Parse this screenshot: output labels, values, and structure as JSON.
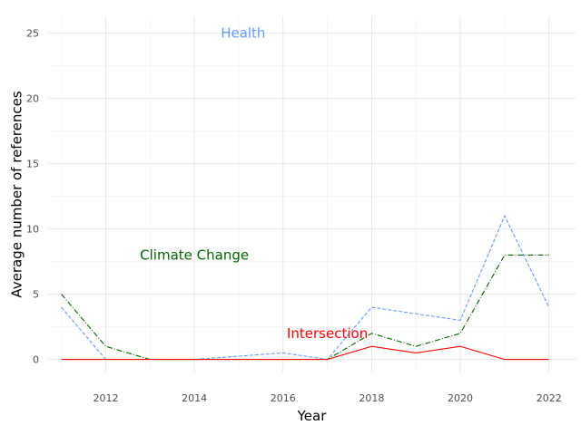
{
  "chart_data": {
    "type": "line",
    "xlabel": "Year",
    "ylabel": "Average number of references",
    "xlim": [
      2010.7,
      2022.6
    ],
    "ylim": [
      -1.0,
      26.3
    ],
    "x_ticks": [
      2012,
      2014,
      2016,
      2018,
      2020,
      2022
    ],
    "y_ticks": [
      0,
      5,
      10,
      15,
      20,
      25
    ],
    "grid": true,
    "legend": "none",
    "x": [
      2011,
      2012,
      2013,
      2014,
      2015,
      2016,
      2017,
      2018,
      2019,
      2020,
      2021,
      2022
    ],
    "series": [
      {
        "name": "Health",
        "color": "#619CFF",
        "dash": "dashed",
        "values": [
          4,
          0,
          0,
          0,
          0.25,
          0.5,
          0,
          4,
          3.5,
          3,
          11,
          4
        ],
        "label_x": 2015.1,
        "label_y": 25
      },
      {
        "name": "Climate Change",
        "color": "#006400",
        "dash": "dashdot",
        "values": [
          5,
          1,
          0,
          0,
          0,
          0,
          0,
          2,
          1,
          2,
          8,
          8
        ],
        "label_x": 2014.0,
        "label_y": 8
      },
      {
        "name": "Intersection",
        "color": "#FF0000",
        "dash": "solid",
        "values": [
          0,
          0,
          0,
          0,
          0,
          0,
          0,
          1,
          0.5,
          1,
          0,
          0
        ],
        "label_x": 2017.0,
        "label_y": 2
      }
    ]
  }
}
